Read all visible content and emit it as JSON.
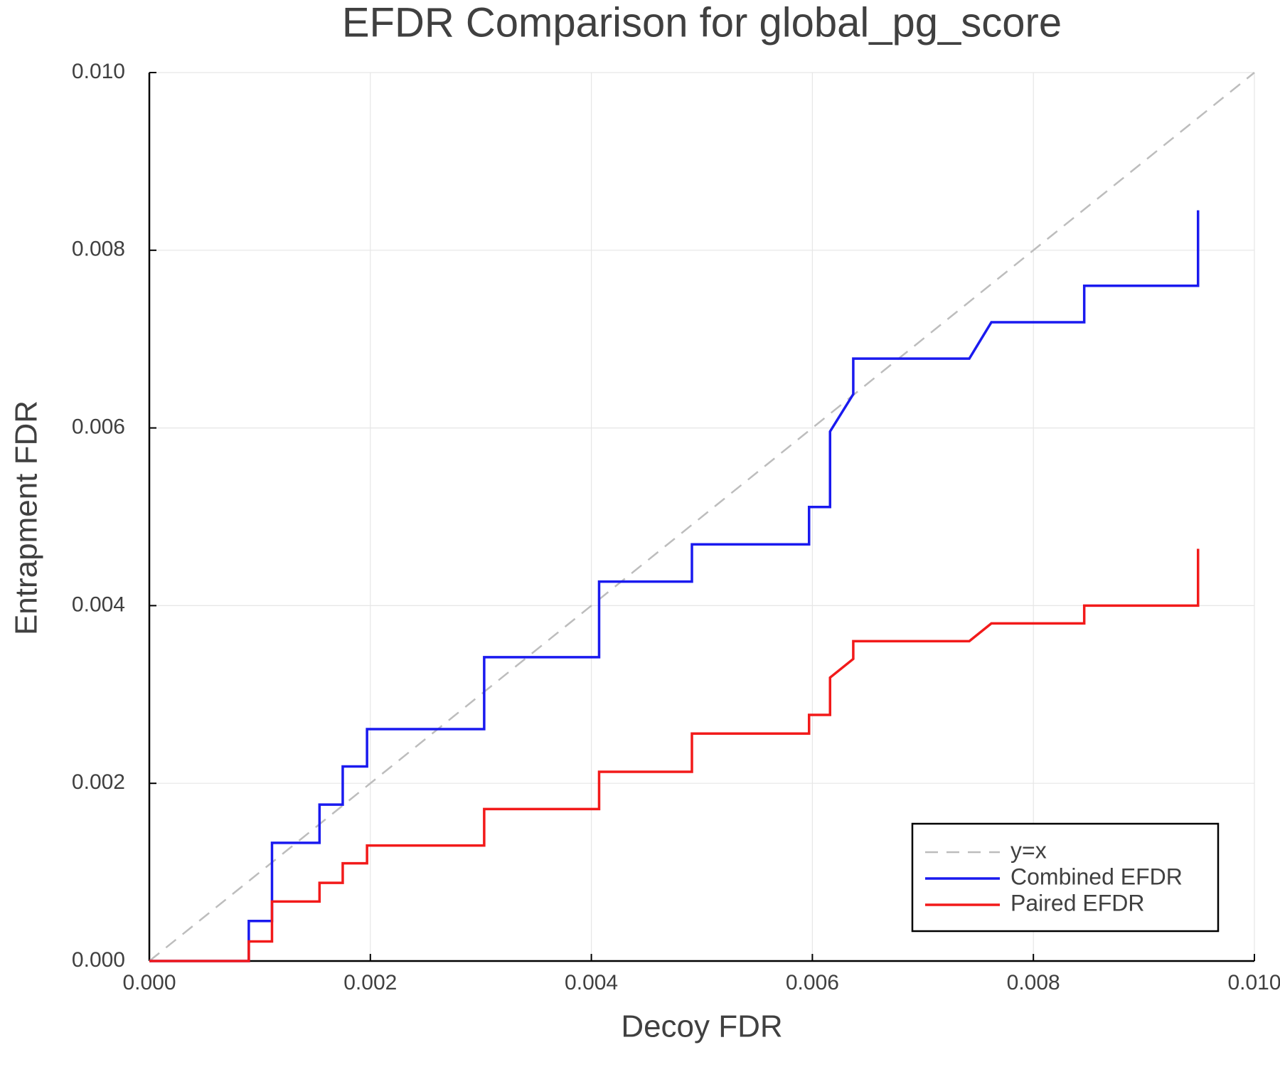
{
  "chart_data": {
    "type": "line",
    "title": "EFDR Comparison for global_pg_score",
    "xlabel": "Decoy FDR",
    "ylabel": "Entrapment FDR",
    "xlim": [
      0,
      0.01
    ],
    "ylim": [
      0,
      0.01
    ],
    "xticks": [
      {
        "value": 0,
        "label": "0.000"
      },
      {
        "value": 0.002,
        "label": "0.002"
      },
      {
        "value": 0.004,
        "label": "0.004"
      },
      {
        "value": 0.006,
        "label": "0.006"
      },
      {
        "value": 0.008,
        "label": "0.008"
      },
      {
        "value": 0.01,
        "label": "0.010"
      }
    ],
    "yticks": [
      {
        "value": 0,
        "label": "0.000"
      },
      {
        "value": 0.002,
        "label": "0.002"
      },
      {
        "value": 0.004,
        "label": "0.004"
      },
      {
        "value": 0.006,
        "label": "0.006"
      },
      {
        "value": 0.008,
        "label": "0.008"
      },
      {
        "value": 0.01,
        "label": "0.010"
      }
    ],
    "grid": true,
    "legend": "lower right",
    "series": [
      {
        "name": "y=x",
        "color": "#bdbdbd",
        "linestyle": "dashed",
        "x": [
          0,
          0.01
        ],
        "values": [
          0,
          0.01
        ]
      },
      {
        "name": "Combined EFDR",
        "color": "#1a1aef",
        "linestyle": "solid",
        "x": [
          0,
          0.0009,
          0.0009,
          0.00111,
          0.00111,
          0.00154,
          0.00154,
          0.00175,
          0.00175,
          0.00197,
          0.00197,
          0.00303,
          0.00303,
          0.00407,
          0.00407,
          0.00491,
          0.00491,
          0.00597,
          0.00597,
          0.00616,
          0.00616,
          0.00637,
          0.00637,
          0.00742,
          0.00762,
          0.00846,
          0.00846,
          0.00949,
          0.00949
        ],
        "values": [
          0,
          0,
          0.00045,
          0.00045,
          0.00133,
          0.00133,
          0.00176,
          0.00176,
          0.00219,
          0.00219,
          0.00261,
          0.00261,
          0.00342,
          0.00342,
          0.00427,
          0.00427,
          0.00469,
          0.00469,
          0.00511,
          0.00511,
          0.00596,
          0.00638,
          0.00678,
          0.00678,
          0.00719,
          0.00719,
          0.0076,
          0.0076,
          0.00845
        ]
      },
      {
        "name": "Paired EFDR",
        "color": "#f21a1a",
        "linestyle": "solid",
        "x": [
          0,
          0.0009,
          0.0009,
          0.00111,
          0.00111,
          0.00154,
          0.00154,
          0.00175,
          0.00175,
          0.00197,
          0.00197,
          0.00303,
          0.00303,
          0.00407,
          0.00407,
          0.00491,
          0.00491,
          0.00597,
          0.00597,
          0.00616,
          0.00616,
          0.00637,
          0.00637,
          0.00742,
          0.00762,
          0.00846,
          0.00846,
          0.00949,
          0.00949
        ],
        "values": [
          0,
          0,
          0.00022,
          0.00022,
          0.00067,
          0.00067,
          0.00088,
          0.00088,
          0.0011,
          0.0011,
          0.0013,
          0.0013,
          0.00171,
          0.00171,
          0.00213,
          0.00213,
          0.00256,
          0.00256,
          0.00277,
          0.00277,
          0.00319,
          0.0034,
          0.0036,
          0.0036,
          0.0038,
          0.0038,
          0.004,
          0.004,
          0.00464
        ]
      }
    ]
  }
}
